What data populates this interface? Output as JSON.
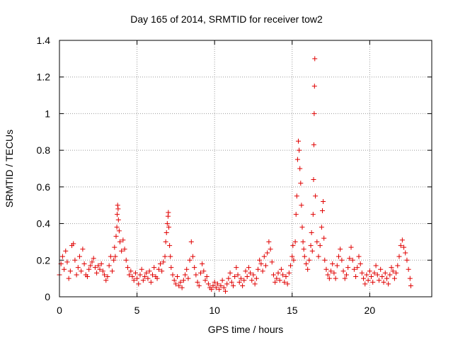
{
  "chart_data": {
    "type": "scatter",
    "title": "Day 165 of 2014, SRMTID for receiver tow2",
    "xlabel": "GPS time / hours",
    "ylabel": "SRMTID / TECUs",
    "xlim": [
      0,
      24
    ],
    "ylim": [
      0,
      1.4
    ],
    "xticks": [
      0,
      5,
      10,
      15,
      20
    ],
    "yticks": [
      0,
      0.2,
      0.4,
      0.6,
      0.8,
      1,
      1.2,
      1.4
    ],
    "ytick_labels": [
      "0",
      "0.2",
      "0.4",
      "0.6",
      "0.8",
      "1",
      "1.2",
      "1.4"
    ],
    "grid": true,
    "marker": "+",
    "color": "#e00000",
    "series": [
      {
        "name": "tow2",
        "points": [
          [
            0.0,
            0.12
          ],
          [
            0.1,
            0.18
          ],
          [
            0.2,
            0.22
          ],
          [
            0.3,
            0.15
          ],
          [
            0.4,
            0.25
          ],
          [
            0.5,
            0.19
          ],
          [
            0.6,
            0.1
          ],
          [
            0.7,
            0.14
          ],
          [
            0.8,
            0.28
          ],
          [
            0.9,
            0.29
          ],
          [
            1.0,
            0.2
          ],
          [
            1.1,
            0.12
          ],
          [
            1.2,
            0.16
          ],
          [
            1.3,
            0.22
          ],
          [
            1.4,
            0.14
          ],
          [
            1.5,
            0.26
          ],
          [
            1.6,
            0.18
          ],
          [
            1.7,
            0.12
          ],
          [
            1.8,
            0.11
          ],
          [
            1.9,
            0.15
          ],
          [
            2.0,
            0.17
          ],
          [
            2.1,
            0.19
          ],
          [
            2.2,
            0.21
          ],
          [
            2.3,
            0.16
          ],
          [
            2.4,
            0.13
          ],
          [
            2.5,
            0.17
          ],
          [
            2.6,
            0.15
          ],
          [
            2.7,
            0.18
          ],
          [
            2.8,
            0.14
          ],
          [
            2.9,
            0.12
          ],
          [
            3.0,
            0.09
          ],
          [
            3.1,
            0.11
          ],
          [
            3.2,
            0.17
          ],
          [
            3.3,
            0.22
          ],
          [
            3.4,
            0.14
          ],
          [
            3.5,
            0.2
          ],
          [
            3.55,
            0.27
          ],
          [
            3.6,
            0.22
          ],
          [
            3.65,
            0.33
          ],
          [
            3.7,
            0.38
          ],
          [
            3.72,
            0.45
          ],
          [
            3.75,
            0.5
          ],
          [
            3.78,
            0.48
          ],
          [
            3.8,
            0.42
          ],
          [
            3.85,
            0.36
          ],
          [
            3.9,
            0.3
          ],
          [
            4.0,
            0.25
          ],
          [
            4.1,
            0.31
          ],
          [
            4.2,
            0.26
          ],
          [
            4.3,
            0.2
          ],
          [
            4.4,
            0.16
          ],
          [
            4.5,
            0.12
          ],
          [
            4.6,
            0.14
          ],
          [
            4.7,
            0.11
          ],
          [
            4.8,
            0.09
          ],
          [
            4.9,
            0.13
          ],
          [
            5.0,
            0.1
          ],
          [
            5.1,
            0.07
          ],
          [
            5.2,
            0.12
          ],
          [
            5.3,
            0.15
          ],
          [
            5.4,
            0.09
          ],
          [
            5.5,
            0.11
          ],
          [
            5.6,
            0.13
          ],
          [
            5.7,
            0.1
          ],
          [
            5.8,
            0.14
          ],
          [
            5.9,
            0.08
          ],
          [
            6.0,
            0.12
          ],
          [
            6.1,
            0.16
          ],
          [
            6.2,
            0.11
          ],
          [
            6.3,
            0.1
          ],
          [
            6.4,
            0.15
          ],
          [
            6.5,
            0.18
          ],
          [
            6.6,
            0.14
          ],
          [
            6.7,
            0.19
          ],
          [
            6.8,
            0.22
          ],
          [
            6.85,
            0.3
          ],
          [
            6.9,
            0.35
          ],
          [
            6.95,
            0.4
          ],
          [
            7.0,
            0.44
          ],
          [
            7.02,
            0.46
          ],
          [
            7.05,
            0.38
          ],
          [
            7.1,
            0.28
          ],
          [
            7.15,
            0.22
          ],
          [
            7.2,
            0.16
          ],
          [
            7.3,
            0.12
          ],
          [
            7.4,
            0.09
          ],
          [
            7.5,
            0.07
          ],
          [
            7.6,
            0.11
          ],
          [
            7.7,
            0.06
          ],
          [
            7.8,
            0.08
          ],
          [
            7.9,
            0.05
          ],
          [
            8.0,
            0.09
          ],
          [
            8.1,
            0.12
          ],
          [
            8.2,
            0.15
          ],
          [
            8.3,
            0.1
          ],
          [
            8.4,
            0.2
          ],
          [
            8.5,
            0.3
          ],
          [
            8.6,
            0.22
          ],
          [
            8.7,
            0.16
          ],
          [
            8.8,
            0.12
          ],
          [
            8.9,
            0.08
          ],
          [
            9.0,
            0.06
          ],
          [
            9.1,
            0.13
          ],
          [
            9.2,
            0.18
          ],
          [
            9.3,
            0.14
          ],
          [
            9.4,
            0.09
          ],
          [
            9.5,
            0.11
          ],
          [
            9.6,
            0.07
          ],
          [
            9.7,
            0.05
          ],
          [
            9.8,
            0.04
          ],
          [
            9.9,
            0.06
          ],
          [
            10.0,
            0.08
          ],
          [
            10.1,
            0.05
          ],
          [
            10.2,
            0.07
          ],
          [
            10.3,
            0.04
          ],
          [
            10.4,
            0.06
          ],
          [
            10.5,
            0.09
          ],
          [
            10.6,
            0.05
          ],
          [
            10.7,
            0.03
          ],
          [
            10.8,
            0.07
          ],
          [
            10.9,
            0.1
          ],
          [
            11.0,
            0.13
          ],
          [
            11.1,
            0.08
          ],
          [
            11.2,
            0.06
          ],
          [
            11.3,
            0.11
          ],
          [
            11.4,
            0.16
          ],
          [
            11.5,
            0.12
          ],
          [
            11.6,
            0.08
          ],
          [
            11.7,
            0.1
          ],
          [
            11.8,
            0.06
          ],
          [
            11.9,
            0.09
          ],
          [
            12.0,
            0.14
          ],
          [
            12.1,
            0.11
          ],
          [
            12.2,
            0.16
          ],
          [
            12.3,
            0.13
          ],
          [
            12.4,
            0.09
          ],
          [
            12.5,
            0.12
          ],
          [
            12.6,
            0.07
          ],
          [
            12.7,
            0.1
          ],
          [
            12.8,
            0.15
          ],
          [
            12.9,
            0.2
          ],
          [
            13.0,
            0.18
          ],
          [
            13.1,
            0.14
          ],
          [
            13.2,
            0.22
          ],
          [
            13.3,
            0.17
          ],
          [
            13.4,
            0.24
          ],
          [
            13.5,
            0.3
          ],
          [
            13.6,
            0.26
          ],
          [
            13.7,
            0.19
          ],
          [
            13.8,
            0.12
          ],
          [
            13.9,
            0.08
          ],
          [
            14.0,
            0.1
          ],
          [
            14.1,
            0.13
          ],
          [
            14.2,
            0.09
          ],
          [
            14.3,
            0.15
          ],
          [
            14.4,
            0.12
          ],
          [
            14.5,
            0.08
          ],
          [
            14.6,
            0.11
          ],
          [
            14.7,
            0.07
          ],
          [
            14.8,
            0.13
          ],
          [
            14.9,
            0.17
          ],
          [
            15.0,
            0.22
          ],
          [
            15.05,
            0.28
          ],
          [
            15.1,
            0.2
          ],
          [
            15.2,
            0.3
          ],
          [
            15.25,
            0.45
          ],
          [
            15.3,
            0.55
          ],
          [
            15.35,
            0.75
          ],
          [
            15.4,
            0.85
          ],
          [
            15.45,
            0.8
          ],
          [
            15.5,
            0.7
          ],
          [
            15.55,
            0.62
          ],
          [
            15.6,
            0.5
          ],
          [
            15.65,
            0.38
          ],
          [
            15.7,
            0.3
          ],
          [
            15.75,
            0.26
          ],
          [
            15.8,
            0.22
          ],
          [
            15.9,
            0.18
          ],
          [
            16.0,
            0.15
          ],
          [
            16.1,
            0.2
          ],
          [
            16.2,
            0.28
          ],
          [
            16.25,
            0.35
          ],
          [
            16.3,
            0.25
          ],
          [
            16.35,
            0.45
          ],
          [
            16.38,
            0.64
          ],
          [
            16.4,
            0.83
          ],
          [
            16.42,
            1.0
          ],
          [
            16.44,
            1.15
          ],
          [
            16.46,
            1.3
          ],
          [
            16.5,
            0.55
          ],
          [
            16.6,
            0.3
          ],
          [
            16.7,
            0.22
          ],
          [
            16.8,
            0.28
          ],
          [
            16.9,
            0.38
          ],
          [
            16.95,
            0.47
          ],
          [
            17.0,
            0.52
          ],
          [
            17.05,
            0.32
          ],
          [
            17.1,
            0.2
          ],
          [
            17.2,
            0.15
          ],
          [
            17.3,
            0.12
          ],
          [
            17.4,
            0.1
          ],
          [
            17.5,
            0.14
          ],
          [
            17.6,
            0.18
          ],
          [
            17.7,
            0.13
          ],
          [
            17.8,
            0.1
          ],
          [
            17.9,
            0.17
          ],
          [
            18.0,
            0.22
          ],
          [
            18.1,
            0.26
          ],
          [
            18.2,
            0.2
          ],
          [
            18.3,
            0.14
          ],
          [
            18.4,
            0.1
          ],
          [
            18.5,
            0.12
          ],
          [
            18.6,
            0.16
          ],
          [
            18.7,
            0.21
          ],
          [
            18.8,
            0.27
          ],
          [
            18.9,
            0.2
          ],
          [
            19.0,
            0.15
          ],
          [
            19.1,
            0.11
          ],
          [
            19.2,
            0.16
          ],
          [
            19.3,
            0.22
          ],
          [
            19.4,
            0.18
          ],
          [
            19.5,
            0.13
          ],
          [
            19.6,
            0.1
          ],
          [
            19.7,
            0.07
          ],
          [
            19.8,
            0.12
          ],
          [
            19.9,
            0.09
          ],
          [
            20.0,
            0.14
          ],
          [
            20.1,
            0.11
          ],
          [
            20.2,
            0.08
          ],
          [
            20.3,
            0.13
          ],
          [
            20.4,
            0.17
          ],
          [
            20.5,
            0.12
          ],
          [
            20.6,
            0.09
          ],
          [
            20.7,
            0.15
          ],
          [
            20.8,
            0.11
          ],
          [
            20.9,
            0.08
          ],
          [
            21.0,
            0.13
          ],
          [
            21.1,
            0.1
          ],
          [
            21.2,
            0.07
          ],
          [
            21.3,
            0.12
          ],
          [
            21.4,
            0.16
          ],
          [
            21.5,
            0.14
          ],
          [
            21.6,
            0.1
          ],
          [
            21.7,
            0.13
          ],
          [
            21.8,
            0.17
          ],
          [
            21.9,
            0.22
          ],
          [
            22.0,
            0.28
          ],
          [
            22.1,
            0.31
          ],
          [
            22.2,
            0.27
          ],
          [
            22.3,
            0.24
          ],
          [
            22.4,
            0.2
          ],
          [
            22.5,
            0.15
          ],
          [
            22.6,
            0.1
          ],
          [
            22.65,
            0.06
          ]
        ]
      }
    ]
  }
}
